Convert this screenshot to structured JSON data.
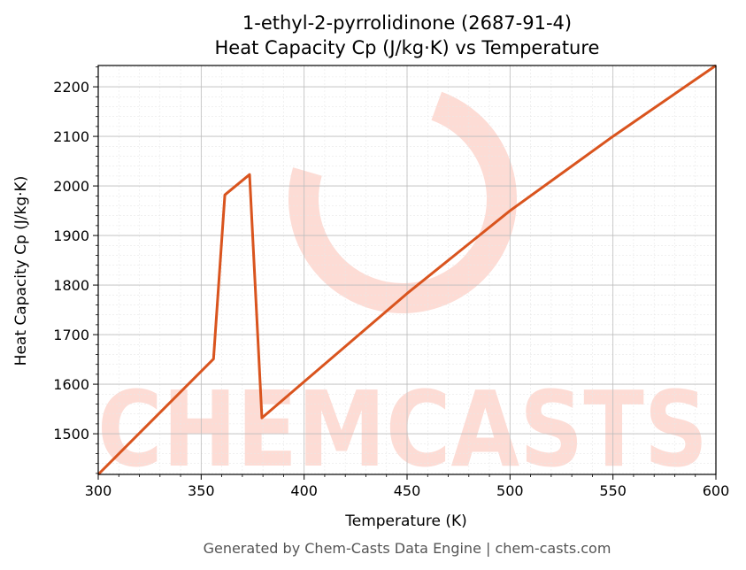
{
  "chart_data": {
    "type": "line",
    "title": "1-ethyl-2-pyrrolidinone (2687-91-4)",
    "subtitle": "Heat Capacity Cp (J/kg·K) vs Temperature",
    "xlabel": "Temperature (K)",
    "ylabel": "Heat Capacity Cp (J/kg·K)",
    "xlim": [
      300,
      600
    ],
    "ylim": [
      1418,
      2243
    ],
    "x_ticks": [
      "300",
      "350",
      "400",
      "450",
      "500",
      "550",
      "600"
    ],
    "y_ticks": [
      "1500",
      "1600",
      "1700",
      "1800",
      "1900",
      "2000",
      "2100",
      "2200"
    ],
    "x_tick_values": [
      300,
      350,
      400,
      450,
      500,
      550,
      600
    ],
    "y_tick_values": [
      1500,
      1600,
      1700,
      1800,
      1900,
      2000,
      2100,
      2200
    ],
    "grid": true,
    "series": [
      {
        "color": "#d9541e",
        "x": [
          300,
          356,
          361.5,
          373.5,
          379.5,
          400,
          450,
          500,
          550,
          600
        ],
        "y": [
          1418,
          1651,
          1982,
          2023,
          1532,
          1605,
          1783,
          1950,
          2100,
          2243
        ]
      }
    ]
  },
  "watermark": {
    "text": "CHEMCASTS",
    "color": "#fddcd5"
  },
  "footer": "Generated by Chem-Casts Data Engine | chem-casts.com"
}
